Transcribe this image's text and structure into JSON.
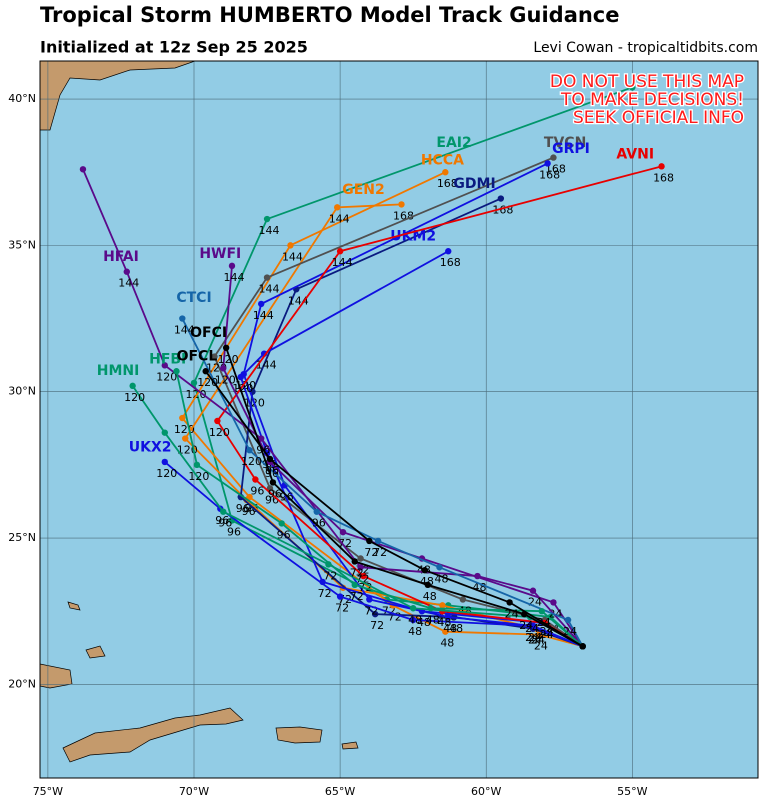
{
  "title": "Tropical Storm HUMBERTO Model Track Guidance",
  "subtitle": "Initialized at 12z Sep 25 2025",
  "credit": "Levi Cowan - tropicaltidbits.com",
  "warning": [
    "DO NOT USE THIS MAP",
    "TO MAKE DECISIONS!",
    "SEEK OFFICIAL INFO"
  ],
  "map": {
    "xlim": [
      -75.27,
      -50.7
    ],
    "ylim": [
      16.8,
      41.3
    ],
    "lon_ticks": [
      {
        "value": -75,
        "label": "75°W"
      },
      {
        "value": -70,
        "label": "70°W"
      },
      {
        "value": -65,
        "label": "65°W"
      },
      {
        "value": -60,
        "label": "60°W"
      },
      {
        "value": -55,
        "label": "55°W"
      }
    ],
    "lat_ticks": [
      {
        "value": 20,
        "label": "20°N"
      },
      {
        "value": 25,
        "label": "25°N"
      },
      {
        "value": 30,
        "label": "30°N"
      },
      {
        "value": 35,
        "label": "35°N"
      },
      {
        "value": 40,
        "label": "40°N"
      }
    ]
  },
  "tracks": [
    {
      "name": "EAI2",
      "color": "#00966b",
      "lon": [
        -56.7,
        -57.8,
        -61.3,
        -63.4,
        -68.7,
        -70.0,
        -67.5,
        -55.0
      ],
      "lat": [
        21.3,
        22.3,
        22.7,
        22.9,
        25.6,
        30.3,
        35.9,
        40.4
      ],
      "hours": [
        null,
        "24",
        "48",
        "72",
        "96",
        "120",
        "144",
        null
      ],
      "name_lon": -61.1,
      "name_lat": 38.5
    },
    {
      "name": "HCCA",
      "color": "#f07800",
      "lon": [
        -56.7,
        -58.2,
        -61.4,
        -63.2,
        -68.1,
        -70.4,
        -66.7,
        -61.4
      ],
      "lat": [
        21.3,
        21.7,
        21.8,
        22.7,
        26.4,
        29.1,
        35.0,
        37.5
      ],
      "hours": [
        null,
        "24",
        "48",
        "72",
        "96",
        "120",
        "144",
        "168"
      ],
      "name_lon": -61.5,
      "name_lat": 37.9
    },
    {
      "name": "GEN2",
      "color": "#f07800",
      "lon": [
        -56.7,
        -58.3,
        -61.5,
        -64.9,
        -68.2,
        -70.3,
        -65.1,
        -62.9
      ],
      "lat": [
        21.3,
        21.9,
        22.7,
        23.3,
        26.3,
        28.4,
        36.3,
        36.4
      ],
      "hours": [
        null,
        "24",
        "48",
        "72",
        "96",
        "120",
        "144",
        "168"
      ],
      "name_lon": -64.2,
      "name_lat": 36.9
    },
    {
      "name": "TVCN",
      "color": "#505050",
      "lon": [
        -56.7,
        -58.0,
        -60.8,
        -64.3,
        -67.4,
        -69.3,
        -67.5,
        -57.7
      ],
      "lat": [
        21.3,
        22.2,
        22.9,
        24.3,
        26.7,
        31.2,
        33.9,
        38.0
      ],
      "hours": [
        null,
        "24",
        "48",
        "72",
        "96",
        "120",
        "144",
        "168"
      ],
      "name_lon": -57.3,
      "name_lat": 38.5
    },
    {
      "name": "GDMI",
      "color": "#0a1a80",
      "lon": [
        -56.7,
        -58.4,
        -61.1,
        -63.8,
        -68.4,
        -68.0,
        -66.5,
        -59.5
      ],
      "lat": [
        21.3,
        21.9,
        22.3,
        22.4,
        26.4,
        30.0,
        33.5,
        36.6
      ],
      "hours": [
        null,
        "24",
        "48",
        "72",
        "96",
        "120",
        "144",
        "168"
      ],
      "name_lon": -60.4,
      "name_lat": 37.1
    },
    {
      "name": "GRPI",
      "color": "#1010e0",
      "lon": [
        -56.7,
        -58.4,
        -61.3,
        -64.0,
        -66.9,
        -68.3,
        -67.7,
        -57.9
      ],
      "lat": [
        21.3,
        22.0,
        22.3,
        22.9,
        26.8,
        30.6,
        33.0,
        37.8
      ],
      "hours": [
        null,
        "24",
        "48",
        "72",
        "96",
        "120",
        "144",
        "168"
      ],
      "name_lon": -57.1,
      "name_lat": 38.3
    },
    {
      "name": "UKM2",
      "color": "#1010e0",
      "lon": [
        -56.7,
        -58.1,
        -62.2,
        -65.6,
        -67.5,
        -68.4,
        -67.6,
        -61.3
      ],
      "lat": [
        21.3,
        22.1,
        22.5,
        23.5,
        27.9,
        30.5,
        31.3,
        34.8
      ],
      "hours": [
        null,
        "24",
        "48",
        "72",
        "96",
        "120",
        "144",
        "168"
      ],
      "name_lon": -62.5,
      "name_lat": 35.3
    },
    {
      "name": "UKX2",
      "color": "#1010e0",
      "lon": [
        -56.7,
        -58.5,
        -62.5,
        -65.0,
        -69.1,
        -71.0
      ],
      "lat": [
        21.3,
        22.0,
        22.2,
        23.0,
        26.0,
        27.6
      ],
      "hours": [
        null,
        "24",
        "48",
        "72",
        "96",
        "120"
      ],
      "name_lon": -71.5,
      "name_lat": 28.1
    },
    {
      "name": "AVNI",
      "color": "#e80000",
      "lon": [
        -56.7,
        -58.0,
        -61.5,
        -64.2,
        -67.9,
        -69.2,
        -65.0,
        -54.0
      ],
      "lat": [
        21.3,
        22.1,
        22.5,
        23.7,
        27.0,
        29.0,
        34.8,
        37.7
      ],
      "hours": [
        null,
        "24",
        "48",
        "72",
        "96",
        "120",
        "144",
        "168"
      ],
      "name_lon": -54.9,
      "name_lat": 38.1
    },
    {
      "name": "HWFI",
      "color": "#5a0a8a",
      "lon": [
        -56.7,
        -57.7,
        -62.2,
        -64.9,
        -67.4,
        -69.0,
        -68.7
      ],
      "lat": [
        21.3,
        22.8,
        24.3,
        25.2,
        27.6,
        30.8,
        34.3
      ],
      "hours": [
        null,
        "24",
        "48",
        "72",
        "96",
        "120",
        "144"
      ],
      "name_lon": -69.1,
      "name_lat": 34.7
    },
    {
      "name": "HFAI",
      "color": "#5a0a8a",
      "lon": [
        -56.7,
        -58.4,
        -60.3,
        -64.3,
        -67.7,
        -71.0,
        -72.3,
        -73.8
      ],
      "lat": [
        21.3,
        23.2,
        23.7,
        24.0,
        28.4,
        30.9,
        34.1,
        37.6
      ],
      "hours": [
        null,
        "24",
        "48",
        "72",
        "96",
        "120",
        "144",
        null
      ],
      "name_lon": -72.5,
      "name_lat": 34.6
    },
    {
      "name": "CTCI",
      "color": "#1565a8",
      "lon": [
        -56.7,
        -57.2,
        -61.6,
        -63.7,
        -65.8,
        -68.1,
        -70.4
      ],
      "lat": [
        21.3,
        22.2,
        24.0,
        24.9,
        25.9,
        28.0,
        32.5
      ],
      "hours": [
        null,
        "24",
        "48",
        "72",
        "96",
        "120",
        "144"
      ],
      "name_lon": -70.0,
      "name_lat": 33.2
    },
    {
      "name": "HMNI",
      "color": "#00966b",
      "lon": [
        -56.7,
        -58.5,
        -62.5,
        -65.4,
        -69.0,
        -71.0,
        -72.1
      ],
      "lat": [
        21.3,
        22.3,
        22.6,
        24.1,
        25.9,
        28.6,
        30.2
      ],
      "hours": [
        null,
        "24",
        "48",
        "72",
        "96",
        null,
        "120"
      ],
      "name_lon": -72.6,
      "name_lat": 30.7
    },
    {
      "name": "HFBI",
      "color": "#00966b",
      "lon": [
        -56.7,
        -58.1,
        -61.9,
        -64.5,
        -67.0,
        -69.9,
        -70.6
      ],
      "lat": [
        21.3,
        22.5,
        22.6,
        23.4,
        25.5,
        27.5,
        30.7
      ],
      "hours": [
        null,
        "24",
        "48",
        "72",
        "96",
        "120",
        null
      ],
      "name_lon": -70.9,
      "name_lat": 31.1
    },
    {
      "name": "OFCI",
      "color": "#000000",
      "lon": [
        -56.7,
        -58.7,
        -62.0,
        -64.5,
        -67.3,
        -68.9
      ],
      "lat": [
        21.3,
        22.4,
        23.4,
        24.2,
        26.9,
        31.5
      ],
      "hours": [
        null,
        "24",
        "48",
        "72",
        "96",
        "120"
      ],
      "name_lon": -69.5,
      "name_lat": 32.0
    },
    {
      "name": "OFCL",
      "color": "#000000",
      "lon": [
        -56.7,
        -59.2,
        -62.1,
        -64.0,
        -67.4,
        -69.6
      ],
      "lat": [
        21.3,
        22.8,
        23.9,
        24.9,
        27.7,
        30.7
      ],
      "hours": [
        null,
        "24",
        "48",
        "72",
        "96",
        "120"
      ],
      "name_lon": -69.9,
      "name_lat": 31.2
    }
  ]
}
